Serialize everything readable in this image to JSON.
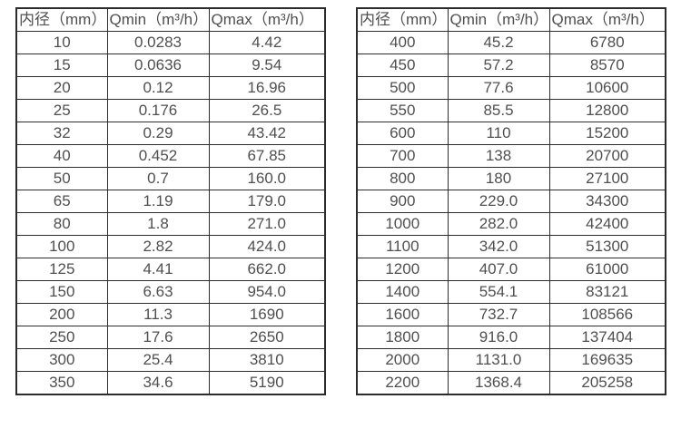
{
  "colors": {
    "background": "#ffffff",
    "border": "#2c2c2c",
    "text": "#4f4f4f"
  },
  "tables": [
    {
      "name": "flow-rate-table-small-diameters",
      "headers": [
        "内径（mm）",
        "Qmin（m³/h）",
        "Qmax（m³/h）"
      ],
      "rows": [
        [
          "10",
          "0.0283",
          "4.42"
        ],
        [
          "15",
          "0.0636",
          "9.54"
        ],
        [
          "20",
          "0.12",
          "16.96"
        ],
        [
          "25",
          "0.176",
          "26.5"
        ],
        [
          "32",
          "0.29",
          "43.42"
        ],
        [
          "40",
          "0.452",
          "67.85"
        ],
        [
          "50",
          "0.7",
          "160.0"
        ],
        [
          "65",
          "1.19",
          "179.0"
        ],
        [
          "80",
          "1.8",
          "271.0"
        ],
        [
          "100",
          "2.82",
          "424.0"
        ],
        [
          "125",
          "4.41",
          "662.0"
        ],
        [
          "150",
          "6.63",
          "954.0"
        ],
        [
          "200",
          "11.3",
          "1690"
        ],
        [
          "250",
          "17.6",
          "2650"
        ],
        [
          "300",
          "25.4",
          "3810"
        ],
        [
          "350",
          "34.6",
          "5190"
        ]
      ]
    },
    {
      "name": "flow-rate-table-large-diameters",
      "headers": [
        "内径（mm）",
        "Qmin（m³/h）",
        "Qmax（m³/h）"
      ],
      "rows": [
        [
          "400",
          "45.2",
          "6780"
        ],
        [
          "450",
          "57.2",
          "8570"
        ],
        [
          "500",
          "77.6",
          "10600"
        ],
        [
          "550",
          "85.5",
          "12800"
        ],
        [
          "600",
          "110",
          "15200"
        ],
        [
          "700",
          "138",
          "20700"
        ],
        [
          "800",
          "180",
          "27100"
        ],
        [
          "900",
          "229.0",
          "34300"
        ],
        [
          "1000",
          "282.0",
          "42400"
        ],
        [
          "1100",
          "342.0",
          "51300"
        ],
        [
          "1200",
          "407.0",
          "61000"
        ],
        [
          "1400",
          "554.1",
          "83121"
        ],
        [
          "1600",
          "732.7",
          "108566"
        ],
        [
          "1800",
          "916.0",
          "137404"
        ],
        [
          "2000",
          "1131.0",
          "169635"
        ],
        [
          "2200",
          "1368.4",
          "205258"
        ]
      ]
    }
  ]
}
